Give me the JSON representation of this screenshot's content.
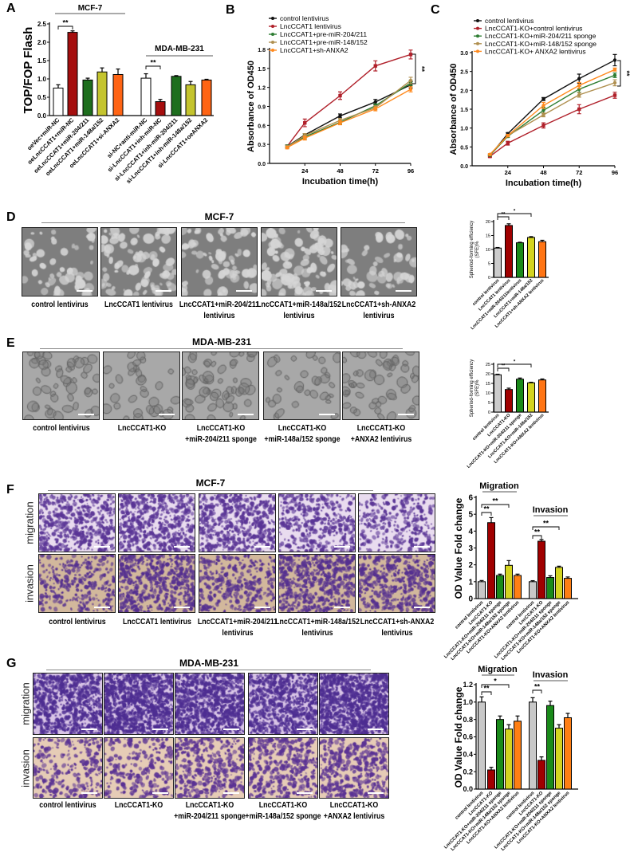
{
  "panel_labels": [
    "A",
    "B",
    "C",
    "D",
    "E",
    "F",
    "G"
  ],
  "image_panels": {
    "D": {
      "title": "MCF-7",
      "rows": [],
      "labels": [
        {
          "l1": "control lentivirus",
          "l2": ""
        },
        {
          "l1": "LncCCAT1 lentivirus",
          "l2": ""
        },
        {
          "l1": "LncCCAT1+miR-204/211",
          "l2": "lentivirus"
        },
        {
          "l1": "LncCCAT1+miR-148a/152",
          "l2": "lentivirus"
        },
        {
          "l1": "LncCCAT1+sh-ANXA2",
          "l2": "lentivirus"
        }
      ]
    },
    "E": {
      "title": "MDA-MB-231",
      "rows": [],
      "labels": [
        {
          "l1": "control lentivirus",
          "l2": ""
        },
        {
          "l1": "LncCCAT1-KO",
          "l2": ""
        },
        {
          "l1": "LncCCAT1-KO",
          "l2": "+miR-204/211 sponge"
        },
        {
          "l1": "LncCCAT1-KO",
          "l2": "+miR-148a/152 sponge"
        },
        {
          "l1": "LncCCAT1-KO",
          "l2": "+ANXA2  lentivirus"
        }
      ]
    },
    "F": {
      "title": "MCF-7",
      "rows": [
        "migration",
        "invasion"
      ],
      "labels": [
        {
          "l1": "control lentivirus",
          "l2": ""
        },
        {
          "l1": "LncCCAT1 lentivirus",
          "l2": ""
        },
        {
          "l1": "LncCCAT1+miR-204/211",
          "l2": "lentivirus"
        },
        {
          "l1": "LncCCAT1+miR-148a/152",
          "l2": "lentivirus"
        },
        {
          "l1": "LncCCAT1+sh-ANXA2",
          "l2": "lentivirus"
        }
      ]
    },
    "G": {
      "title": "MDA-MB-231",
      "rows": [
        "migration",
        "invasion"
      ],
      "labels": [
        {
          "l1": "control lentivirus",
          "l2": ""
        },
        {
          "l1": "LncCCAT1-KO",
          "l2": ""
        },
        {
          "l1": "LncCCAT1-KO",
          "l2": "+miR-204/211 sponge"
        },
        {
          "l1": "LncCCAT1-KO",
          "l2": "+miR-148a/152 sponge"
        },
        {
          "l1": "LncCCAT1-KO",
          "l2": "+ANXA2  lentivirus"
        }
      ]
    }
  },
  "chart_data": [
    {
      "panel": "A",
      "type": "bar",
      "ylabel": "TOP/FOP Flash",
      "ylim": [
        0,
        2.5
      ],
      "yticks": [
        "0.0",
        "0.5",
        "1.0",
        "1.5",
        "2.0",
        "2.5"
      ],
      "colors": [
        "#ffffff",
        "#a50e0e",
        "#1e6e1e",
        "#c4c42e",
        "#ff6414"
      ],
      "groups": [
        {
          "name": "MCF-7",
          "categories": [
            "oeVec+miR-NC",
            "oeLncCCAT1+miR-NC",
            "oeLncCCAT1+miR-204/211",
            "oeLncCCAT1+miR-148a/152",
            "oeLncCCAT1+si-ANXA2"
          ],
          "values": [
            0.75,
            2.27,
            0.97,
            1.19,
            1.12
          ],
          "errors": [
            0.09,
            0.04,
            0.05,
            0.11,
            0.15
          ],
          "significance": [
            {
              "a": 0,
              "b": 1,
              "label": "**"
            }
          ]
        },
        {
          "name": "MDA-MB-231",
          "categories": [
            "si-NC+anti-miR-NC",
            "si-LncCCAT1+inh-miR-NC",
            "si-LncCCAT1+inh-miR-204/211",
            "si-LncCCAT1+inh-miR-148a/152",
            "si-LncCCAT1+oeANXA2"
          ],
          "values": [
            1.02,
            0.38,
            1.07,
            0.84,
            0.97
          ],
          "errors": [
            0.12,
            0.06,
            0.02,
            0.09,
            0.02
          ],
          "significance": [
            {
              "a": 0,
              "b": 1,
              "label": "**"
            }
          ]
        }
      ]
    },
    {
      "panel": "B",
      "type": "line",
      "xlabel": "Incubation time(h)",
      "ylabel": "Absorbance of OD450",
      "xlim": [
        0,
        96
      ],
      "ylim": [
        0,
        1.8
      ],
      "xticks": [
        "24",
        "48",
        "72",
        "96"
      ],
      "yticks": [
        "0.0",
        "0.3",
        "0.6",
        "0.9",
        "1.2",
        "1.5",
        "1.8"
      ],
      "x": [
        12,
        24,
        48,
        72,
        96
      ],
      "legend": "top-left",
      "significance": "**",
      "series": [
        {
          "name": "control lentivirus",
          "color": "#111111",
          "values": [
            0.27,
            0.45,
            0.75,
            0.97,
            1.24
          ],
          "errors": [
            0.02,
            0.02,
            0.03,
            0.04,
            0.05
          ]
        },
        {
          "name": "LncCCAT1 lentivirus",
          "color": "#b0202a",
          "values": [
            0.27,
            0.64,
            1.07,
            1.54,
            1.72
          ],
          "errors": [
            0.02,
            0.06,
            0.06,
            0.08,
            0.07
          ]
        },
        {
          "name": "LncCCAT1+pre-miR-204/211",
          "color": "#2e7d32",
          "values": [
            0.27,
            0.42,
            0.65,
            0.91,
            1.27
          ],
          "errors": [
            0.02,
            0.03,
            0.03,
            0.03,
            0.04
          ]
        },
        {
          "name": "LncCCAT1+pre-miR-148/152",
          "color": "#b09050",
          "values": [
            0.26,
            0.44,
            0.68,
            0.88,
            1.31
          ],
          "errors": [
            0.02,
            0.03,
            0.03,
            0.03,
            0.05
          ]
        },
        {
          "name": "LncCCAT1+sh-ANXA2",
          "color": "#ff8a1e",
          "values": [
            0.25,
            0.4,
            0.64,
            0.86,
            1.17
          ],
          "errors": [
            0.02,
            0.03,
            0.03,
            0.03,
            0.04
          ]
        }
      ]
    },
    {
      "panel": "C",
      "type": "line",
      "xlabel": "Incubation time(h)",
      "ylabel": "Absorbance of OD450",
      "xlim": [
        0,
        96
      ],
      "ylim": [
        0,
        3.0
      ],
      "xticks": [
        "24",
        "48",
        "72",
        "96"
      ],
      "yticks": [
        "0.0",
        "0.5",
        "1.0",
        "1.5",
        "2.0",
        "2.5",
        "3.0"
      ],
      "x": [
        12,
        24,
        48,
        72,
        96
      ],
      "legend": "top-left",
      "significance": "**",
      "series": [
        {
          "name": "control lentivirus",
          "color": "#111111",
          "values": [
            0.27,
            0.85,
            1.77,
            2.31,
            2.8
          ],
          "errors": [
            0.02,
            0.03,
            0.04,
            0.12,
            0.15
          ]
        },
        {
          "name": "LncCCAT1-KO+control lentivirus",
          "color": "#b0202a",
          "values": [
            0.25,
            0.6,
            1.07,
            1.5,
            1.87
          ],
          "errors": [
            0.03,
            0.05,
            0.07,
            0.12,
            0.08
          ]
        },
        {
          "name": "LncCCAT1-KO+miR-204/211 sponge",
          "color": "#2e7d32",
          "values": [
            0.28,
            0.78,
            1.47,
            2.03,
            2.4
          ],
          "errors": [
            0.02,
            0.03,
            0.08,
            0.08,
            0.06
          ]
        },
        {
          "name": "LncCCAT1-KO+miR-148/152 sponge",
          "color": "#b09050",
          "values": [
            0.3,
            0.8,
            1.35,
            1.88,
            2.2
          ],
          "errors": [
            0.02,
            0.03,
            0.05,
            0.06,
            0.08
          ]
        },
        {
          "name": "LncCCAT1-KO+ ANXA2 lentivirus",
          "color": "#ff8a1e",
          "values": [
            0.3,
            0.8,
            1.6,
            2.13,
            2.55
          ],
          "errors": [
            0.02,
            0.03,
            0.08,
            0.08,
            0.04
          ]
        }
      ]
    },
    {
      "panel": "D",
      "type": "bar",
      "ylabel": "Spheriod-forming efficiency",
      "ylabel2": "(SFE)%",
      "ylim": [
        0,
        20
      ],
      "yticks": [
        "0",
        "5",
        "10",
        "15",
        "20"
      ],
      "colors": [
        "#cccccc",
        "#a00000",
        "#1a8a1a",
        "#d4d420",
        "#ff7414"
      ],
      "groups": [
        {
          "name": "",
          "categories": [
            "control lentivirus",
            "LncCCAT1 lentivirus",
            "LncCCAT1+miR-204/211lentivirus",
            "LncCCAT1+miR-148a/152",
            "LncCCAT1+sh-ANXA2 lentivirus"
          ],
          "values": [
            10.5,
            18.6,
            12.4,
            14.3,
            12.8
          ],
          "errors": [
            0.2,
            0.6,
            0.2,
            0.3,
            0.5
          ],
          "significance": [
            {
              "a": 0,
              "b": 1,
              "label": "**"
            },
            {
              "a": 0,
              "b": 3,
              "label": "*"
            }
          ]
        }
      ]
    },
    {
      "panel": "E",
      "type": "bar",
      "ylabel": "Spheriod-forming efficiency",
      "ylabel2": "(SFE)%",
      "ylim": [
        0,
        25
      ],
      "yticks": [
        "0",
        "5",
        "10",
        "15",
        "20",
        "25"
      ],
      "colors": [
        "#cccccc",
        "#a00000",
        "#1a8a1a",
        "#d4d420",
        "#ff7414"
      ],
      "groups": [
        {
          "name": "",
          "categories": [
            "control lentivirus",
            "LncCCAT1-KO",
            "LncCCAT1-KO+miR-204/211 sponge",
            "LncCCAT1-KO+miR-148a/152",
            "LncCCAT1-KO+ANXA2 lentivirus"
          ],
          "values": [
            19.5,
            11.8,
            17.2,
            15.3,
            16.8
          ],
          "errors": [
            0.3,
            0.7,
            0.6,
            0.3,
            0.5
          ],
          "significance": [
            {
              "a": 0,
              "b": 1,
              "label": "**"
            },
            {
              "a": 0,
              "b": 3,
              "label": "*"
            }
          ]
        }
      ]
    },
    {
      "panel": "F",
      "type": "bar",
      "ylabel": "OD Value Fold change",
      "ylim": [
        0,
        6
      ],
      "yticks": [
        "0",
        "1",
        "2",
        "3",
        "4",
        "5",
        "6"
      ],
      "colors": [
        "#c8c8c8",
        "#a00000",
        "#1a8a1a",
        "#d4d420",
        "#ff7f14"
      ],
      "groups": [
        {
          "name": "Migration",
          "categories": [
            "control lentivirus",
            "LncCCAT1-KO",
            "LncCCAT1-KO+miR-204/211 sponge",
            "LncCCAT1-KO+miR-148a/152 sponge",
            "LncCCAT1-KO+ANXA2  lentivirus"
          ],
          "values": [
            1.0,
            4.5,
            1.37,
            1.97,
            1.37
          ],
          "errors": [
            0.07,
            0.3,
            0.08,
            0.28,
            0.08
          ],
          "significance": [
            {
              "a": 0,
              "b": 1,
              "label": "**"
            },
            {
              "a": 0,
              "b": 3,
              "label": "**"
            }
          ]
        },
        {
          "name": "Invasion",
          "categories": [
            "control lentivirus",
            "LncCCAT1-KO",
            "LncCCAT1-KO+miR-204/211 sponge",
            "LncCCAT1-KO+miR-148a/152 sponge",
            "LncCCAT1-KO+ANXA2  lentivirus"
          ],
          "values": [
            1.0,
            3.4,
            1.25,
            1.85,
            1.2
          ],
          "errors": [
            0.06,
            0.1,
            0.1,
            0.07,
            0.08
          ],
          "significance": [
            {
              "a": 0,
              "b": 1,
              "label": "**"
            },
            {
              "a": 0,
              "b": 3,
              "label": "**"
            }
          ]
        }
      ]
    },
    {
      "panel": "G",
      "type": "bar",
      "ylabel": "OD Value Fold change",
      "ylim": [
        0,
        1.2
      ],
      "yticks": [
        "0.0",
        "0.2",
        "0.4",
        "0.6",
        "0.8",
        "1.0",
        "1.2"
      ],
      "colors": [
        "#c8c8c8",
        "#a00000",
        "#1a8a1a",
        "#d4d420",
        "#ff7f14"
      ],
      "groups": [
        {
          "name": "Migration",
          "categories": [
            "control lentivirus",
            "LncCCAT1-KO",
            "LncCCAT1-KO+miR-204/211 sponge",
            "LncCCAT1-KO+miR-148a/152 sponge",
            "LncCCAT1-KO+ANXA2  lentivirus"
          ],
          "values": [
            1.0,
            0.22,
            0.8,
            0.69,
            0.78
          ],
          "errors": [
            0.06,
            0.03,
            0.04,
            0.05,
            0.06
          ],
          "significance": [
            {
              "a": 0,
              "b": 1,
              "label": "**"
            },
            {
              "a": 0,
              "b": 3,
              "label": "*"
            }
          ]
        },
        {
          "name": "Invasion",
          "categories": [
            "control lentivirus",
            "LncCCAT1-KO",
            "LncCCAT1-KO+miR-204/211 sponge",
            "LncCCAT1-KO+miR-148a/152 sponge",
            "LncCCAT1-KO+ANXA2  lentivirus"
          ],
          "values": [
            1.0,
            0.33,
            0.96,
            0.7,
            0.82
          ],
          "errors": [
            0.05,
            0.04,
            0.05,
            0.04,
            0.05
          ],
          "significance": [
            {
              "a": 0,
              "b": 1,
              "label": "**"
            }
          ]
        }
      ]
    }
  ]
}
